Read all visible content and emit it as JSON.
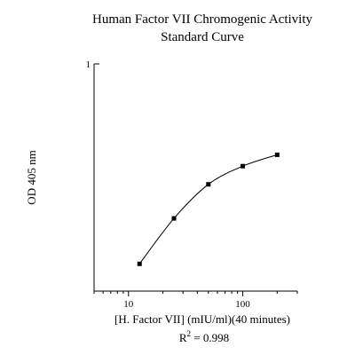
{
  "chart_data": {
    "type": "scatter",
    "title_lines": [
      "Human Factor VII Chromogenic Activity",
      "Standard Curve"
    ],
    "xlabel": "[H. Factor VII] (mIU/ml)(40 minutes)",
    "ylabel": "OD 405 nm",
    "x_scale": "log",
    "xlim": [
      5,
      300
    ],
    "ylim": [
      0,
      1
    ],
    "x_ticks": [
      {
        "value": 10,
        "label": "10"
      },
      {
        "value": 100,
        "label": "100"
      }
    ],
    "y_ticks": [
      {
        "value": 1,
        "label": "1"
      }
    ],
    "x": [
      12.5,
      25,
      50,
      100,
      200
    ],
    "y": [
      0.12,
      0.32,
      0.47,
      0.55,
      0.6
    ],
    "fit_curve": true,
    "grid": false,
    "legend": "none",
    "marker": "square",
    "color": "#000000",
    "annotation": {
      "r2_prefix": "R",
      "r2_sup": "2",
      "r2_value": " = 0.998"
    }
  }
}
